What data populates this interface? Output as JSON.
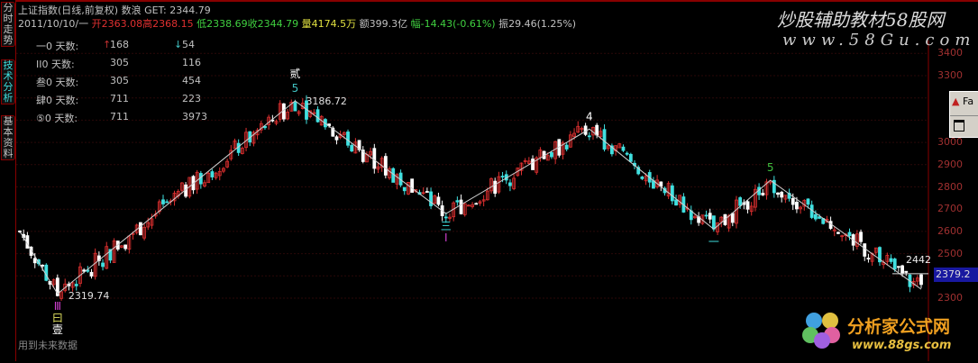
{
  "tabs": [
    "分时走势",
    "技术分析",
    "基本资料"
  ],
  "header": {
    "title": "上证指数(日线,前复权) 数浪  GET: 2344.79",
    "date": "2011/10/10/一",
    "open": "开2363.08",
    "high": "高2368.15",
    "low": "低2338.69",
    "close": "收2344.79",
    "volume": "量4174.5万",
    "amount": "额399.3亿",
    "change": "幅-14.43(-0.61%)",
    "amplitude": "振29.46(1.25%)"
  },
  "stats": [
    {
      "label": "一0 天数:",
      "up": "168",
      "down": "54"
    },
    {
      "label": "II0 天数:",
      "up": "305",
      "down": "116"
    },
    {
      "label": "叁0 天数:",
      "up": "305",
      "down": "454"
    },
    {
      "label": "肆0 天数:",
      "up": "711",
      "down": "223"
    },
    {
      "label": "⑤0 天数:",
      "up": "711",
      "down": "3973"
    }
  ],
  "stat_arrows": {
    "up": "↑",
    "down": "↓"
  },
  "axis": {
    "ticks": [
      "3400",
      "3300",
      "3000",
      "2900",
      "2800",
      "2700",
      "2600",
      "2500",
      "2300"
    ],
    "range": [
      2250,
      3420
    ]
  },
  "price_tag": "2379.2",
  "last_label": "2442",
  "chart_data": {
    "type": "candlestick",
    "bars": 240,
    "pivots": [
      {
        "i": 0,
        "p": 2600
      },
      {
        "i": 10,
        "p": 2319.74
      },
      {
        "i": 73,
        "p": 3186.72
      },
      {
        "i": 113,
        "p": 2680
      },
      {
        "i": 151,
        "p": 3060
      },
      {
        "i": 184,
        "p": 2610
      },
      {
        "i": 199,
        "p": 2830
      },
      {
        "i": 239,
        "p": 2340
      }
    ],
    "labels": [
      {
        "i": 10,
        "p": 2319.74,
        "text": "2319.74"
      },
      {
        "i": 73,
        "p": 3186.72,
        "text": "3186.72"
      }
    ],
    "wave_marks": [
      {
        "i": 10,
        "texts": [
          "Ⅲ",
          "曰",
          "壹"
        ],
        "colors": [
          "#d040d0",
          "#e0e060",
          "#ffffff"
        ],
        "below": true
      },
      {
        "i": 73,
        "texts": [
          "贰",
          "5"
        ],
        "colors": [
          "#ffffff",
          "#40c0c0"
        ],
        "below": false
      },
      {
        "i": 113,
        "texts": [
          "三",
          "I"
        ],
        "colors": [
          "#40e0e0",
          "#d040d0"
        ],
        "below": true
      },
      {
        "i": 151,
        "texts": [
          "4"
        ],
        "colors": [
          "#ffffff"
        ],
        "below": false
      },
      {
        "i": 184,
        "texts": [
          "一"
        ],
        "colors": [
          "#40e0e0"
        ],
        "below": true
      },
      {
        "i": 199,
        "texts": [
          "5"
        ],
        "colors": [
          "#40c040"
        ],
        "below": false
      }
    ],
    "up_color": "#e03030",
    "down_color": "#40e0e0"
  },
  "footer_note": "用到未来数据",
  "popup_text": "Fa",
  "watermarks": {
    "top": "炒股辅助教材58股网",
    "top_url": "www.58Gu.com",
    "bottom": "分析家公式网",
    "bottom_url": "www.88gs.com"
  }
}
